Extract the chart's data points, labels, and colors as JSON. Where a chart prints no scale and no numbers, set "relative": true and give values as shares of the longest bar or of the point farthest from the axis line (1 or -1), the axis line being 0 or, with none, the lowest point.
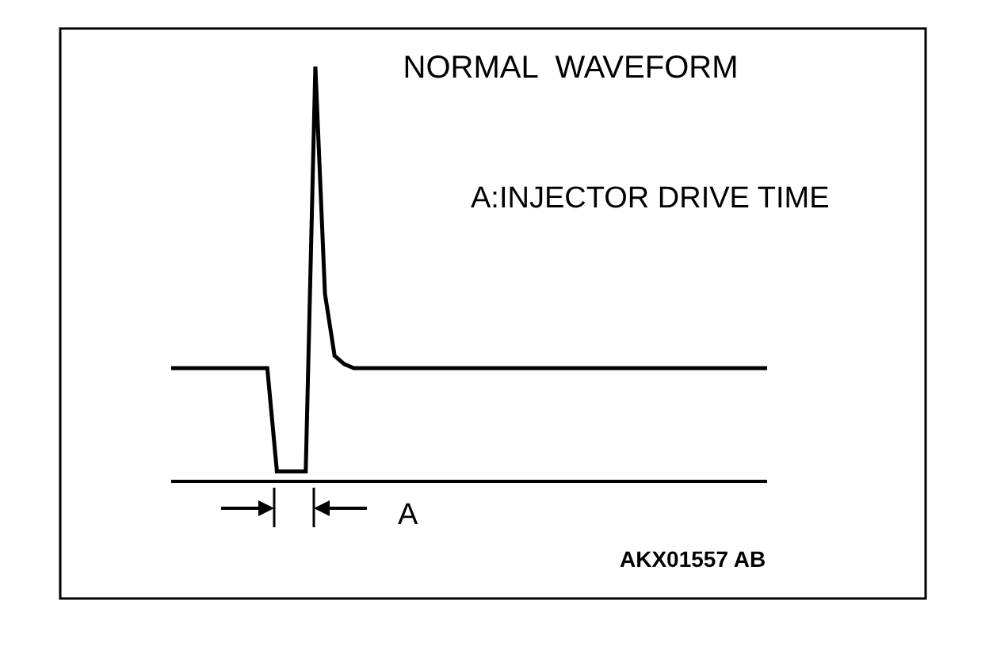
{
  "chart_data": {
    "type": "line",
    "title": "NORMAL  WAVEFORM",
    "relative": true,
    "color": "#000000",
    "categories": [
      null,
      null,
      null,
      null,
      null,
      null,
      null,
      null,
      null,
      null,
      null,
      null,
      null,
      null,
      null,
      null,
      null,
      null,
      null,
      null,
      null,
      null,
      null,
      null,
      null,
      null,
      null,
      null,
      null,
      null,
      null,
      null,
      null,
      null,
      null,
      null,
      null,
      null,
      null,
      null,
      null,
      null,
      null,
      null,
      null,
      null,
      null,
      null,
      null,
      null,
      null,
      null,
      null,
      null,
      null,
      null,
      null,
      null,
      null,
      null,
      null,
      null,
      null
    ],
    "values": [
      0.27,
      0.27,
      0.27,
      0.27,
      0.27,
      0.27,
      0.27,
      0.27,
      0.27,
      0.27,
      0.27,
      0.02,
      0.02,
      0.02,
      0.02,
      1.0,
      0.45,
      0.3,
      0.28,
      0.27,
      0.27,
      0.27,
      0.27,
      0.27,
      0.27,
      0.27,
      0.27,
      0.27,
      0.27,
      0.27,
      0.27,
      0.27,
      0.27,
      0.27,
      0.27,
      0.27,
      0.27,
      0.27,
      0.27,
      0.27,
      0.27,
      0.27,
      0.27,
      0.27,
      0.27,
      0.27,
      0.27,
      0.27,
      0.27,
      0.27,
      0.27,
      0.27,
      0.27,
      0.27,
      0.27,
      0.27,
      0.27,
      0.27,
      0.27,
      0.27,
      0.27,
      0.27,
      0.27
    ],
    "annotations": [
      "A:INJECTOR DRIVE TIME",
      "A",
      "AKX01557 AB"
    ]
  }
}
